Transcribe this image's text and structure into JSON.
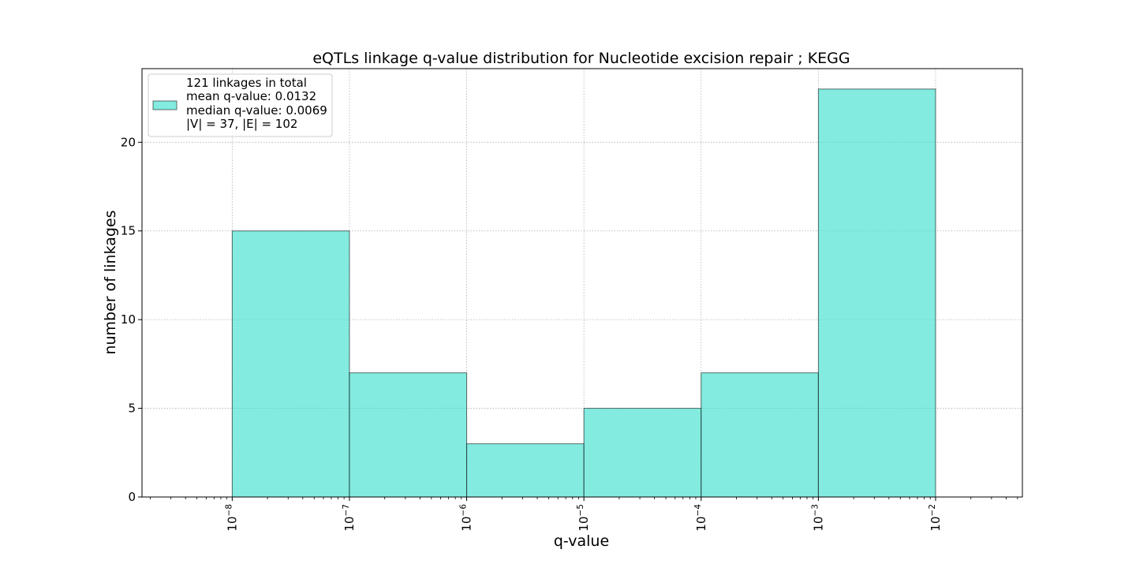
{
  "chart_data": {
    "type": "bar",
    "title": "eQTLs linkage q-value distribution for Nucleotide excision repair ; KEGG",
    "xlabel": "q-value",
    "ylabel": "number of linkages",
    "x_scale": "log",
    "x_ticks": [
      {
        "base": "10",
        "exp": "−8"
      },
      {
        "base": "10",
        "exp": "−7"
      },
      {
        "base": "10",
        "exp": "−6"
      },
      {
        "base": "10",
        "exp": "−5"
      },
      {
        "base": "10",
        "exp": "−4"
      },
      {
        "base": "10",
        "exp": "−3"
      },
      {
        "base": "10",
        "exp": "−2"
      }
    ],
    "y_ticks": [
      "0",
      "5",
      "10",
      "15",
      "20"
    ],
    "xlim": [
      1.7e-09,
      0.055
    ],
    "ylim": [
      0,
      24.15
    ],
    "grid": true,
    "bins": [
      {
        "x0": 1e-08,
        "x1": 1e-07,
        "value": 15
      },
      {
        "x0": 1e-07,
        "x1": 1e-06,
        "value": 7
      },
      {
        "x0": 1e-06,
        "x1": 1e-05,
        "value": 3
      },
      {
        "x0": 1e-05,
        "x1": 0.0001,
        "value": 5
      },
      {
        "x0": 0.0001,
        "x1": 0.001,
        "value": 7
      },
      {
        "x0": 0.001,
        "x1": 0.01,
        "value": 23
      }
    ],
    "bar_color": "#40e0d0",
    "edge_color": "#000000",
    "legend": {
      "placement": "upper-left",
      "lines": [
        "121 linkages in total",
        "mean q-value: 0.0132",
        "median q-value: 0.0069",
        "|V| = 37, |E| = 102"
      ]
    }
  }
}
